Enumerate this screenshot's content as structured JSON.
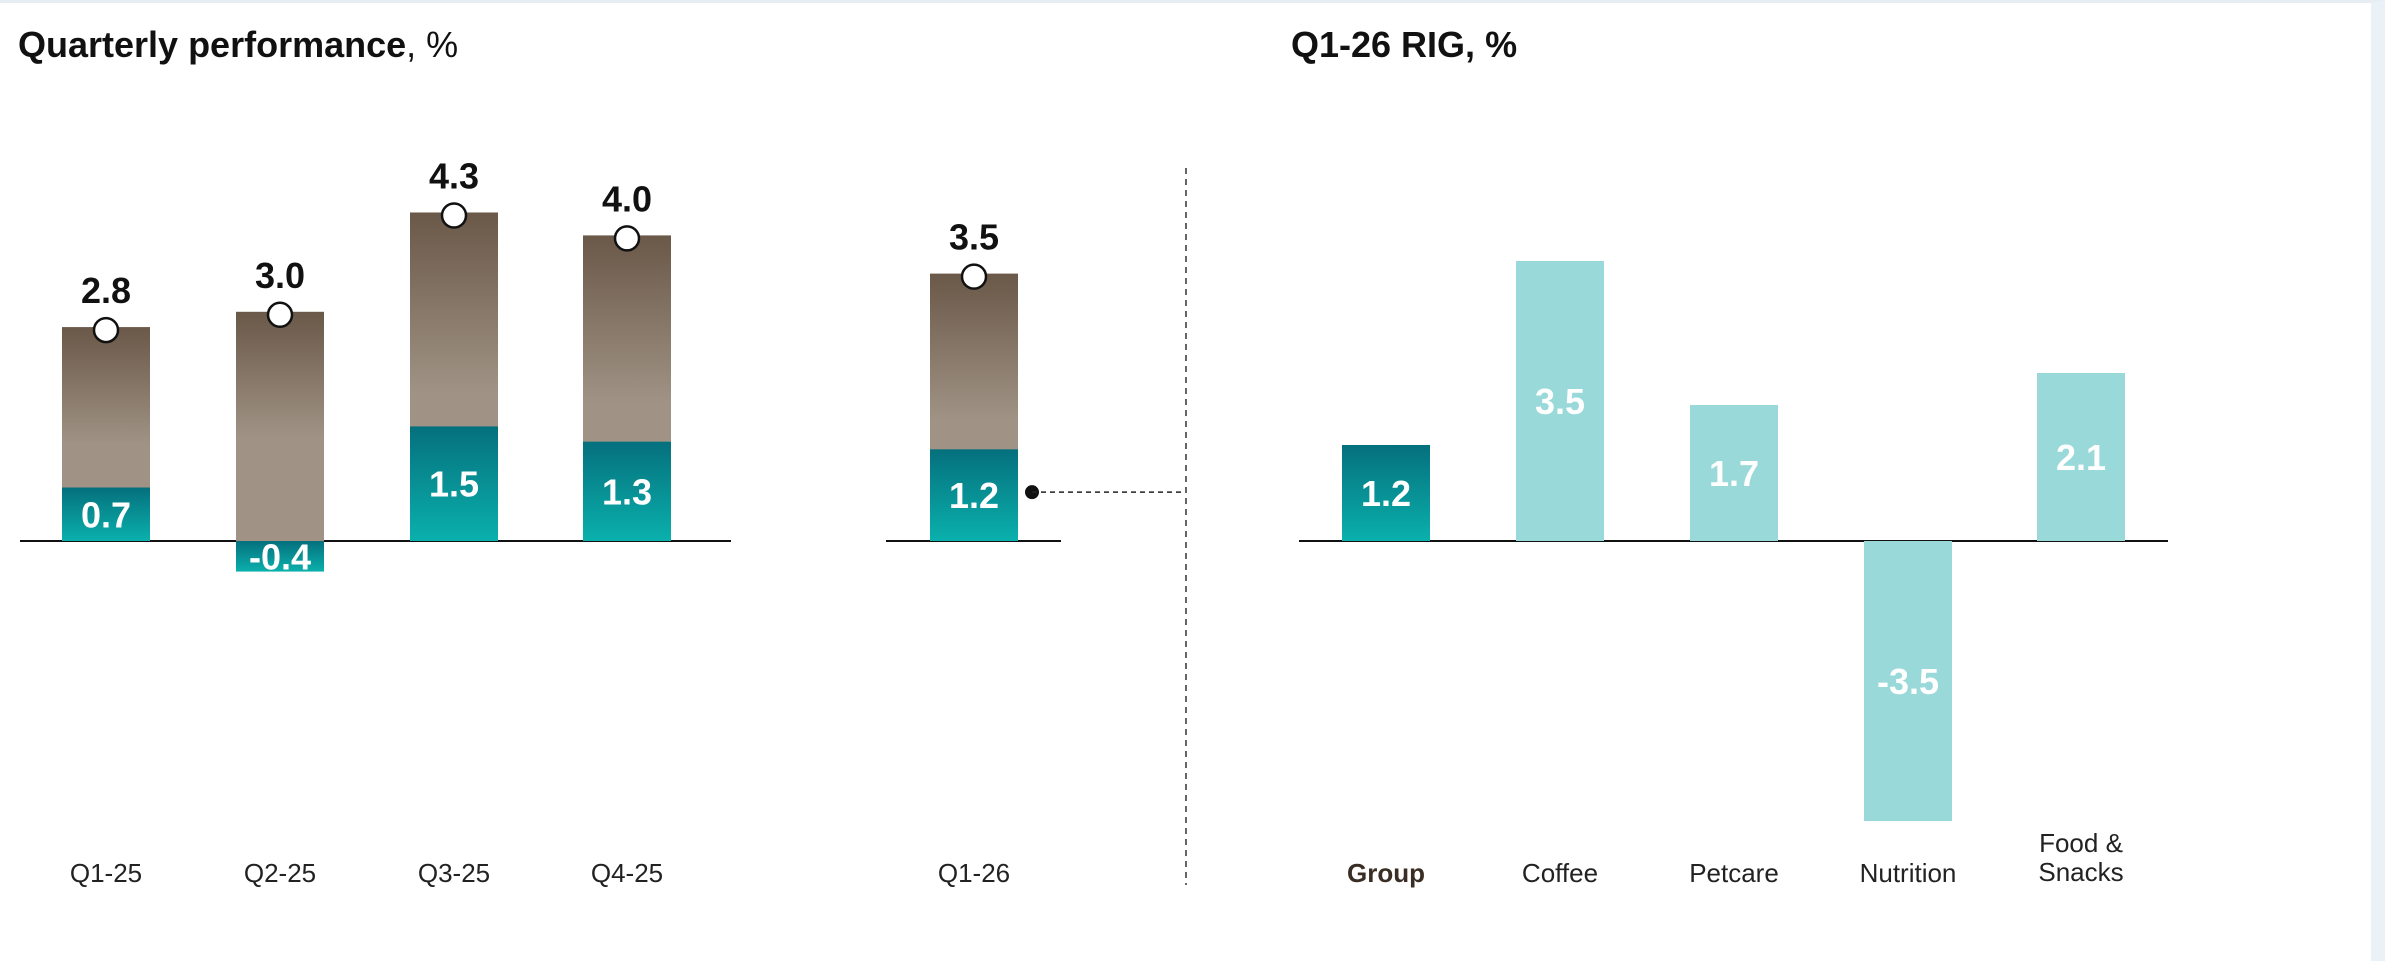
{
  "left_chart_title": {
    "bold": "Quarterly performance",
    "rest": ", %"
  },
  "right_chart_title": {
    "bold": "Q1-26 RIG, %",
    "rest": ""
  },
  "colors": {
    "oig_top": "#6a5848",
    "oig_bottom": "#a09385",
    "rig_top": "#05707d",
    "rig_bottom": "#0ab0ac",
    "category_bar": "#9ad9d9",
    "label_on_bar": "#ffffff",
    "axis": "#111111"
  },
  "chart_data": [
    {
      "type": "bar",
      "title": "Quarterly performance, %",
      "categories": [
        "Q1-25",
        "Q2-25",
        "Q3-25",
        "Q4-25",
        "Q1-26"
      ],
      "series": [
        {
          "name": "",
          "values": [
            2.8,
            3.0,
            4.3,
            4.0,
            3.5
          ],
          "marker": "circle"
        },
        {
          "name": "",
          "values": [
            0.7,
            -0.4,
            1.5,
            1.3,
            1.2
          ]
        }
      ],
      "value_labels_total": [
        "2.8",
        "3.0",
        "4.3",
        "4.0",
        "3.5"
      ],
      "value_labels_inner": [
        "0.7",
        "-0.4",
        "1.5",
        "1.3",
        "1.2"
      ],
      "baseline": 0,
      "grid": false
    },
    {
      "type": "bar",
      "title": "Q1-26 RIG, %",
      "categories": [
        "Group",
        "Coffee",
        "Petcare",
        "Nutrition",
        "Food & Snacks"
      ],
      "category_emphasis": "Group",
      "series": [
        {
          "name": "",
          "values": [
            1.2,
            3.5,
            1.7,
            -3.5,
            2.1
          ]
        }
      ],
      "value_labels": [
        "1.2",
        "3.5",
        "1.7",
        "-3.5",
        "2.1"
      ],
      "baseline": 0,
      "grid": false
    }
  ]
}
